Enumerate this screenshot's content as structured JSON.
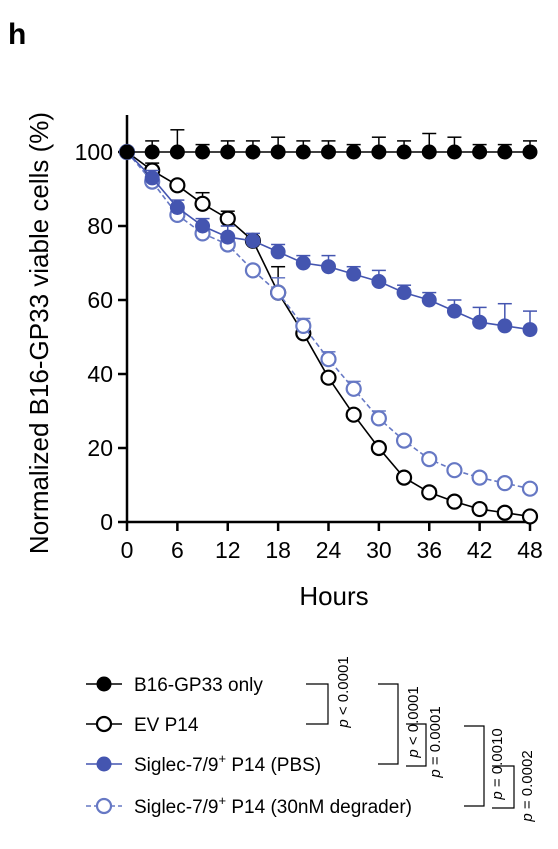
{
  "panel_label": "h",
  "chart_data": {
    "type": "line",
    "xlabel": "Hours",
    "ylabel": "Normalized B16-GP33 viable cells (%)",
    "xlim": [
      0,
      48
    ],
    "ylim": [
      0,
      110
    ],
    "x_ticks": [
      0,
      6,
      12,
      18,
      24,
      30,
      36,
      42,
      48
    ],
    "y_ticks": [
      0,
      20,
      40,
      60,
      80,
      100
    ],
    "x": [
      0,
      3,
      6,
      9,
      12,
      15,
      18,
      21,
      24,
      27,
      30,
      33,
      36,
      39,
      42,
      45,
      48
    ],
    "grid": false,
    "legend_position": "bottom",
    "series": [
      {
        "name": "B16-GP33 only",
        "color": "#000000",
        "marker": "filled-circle",
        "line": "solid",
        "values": [
          100,
          100,
          100,
          100,
          100,
          100,
          100,
          100,
          100,
          100,
          100,
          100,
          100,
          100,
          100,
          100,
          100
        ],
        "error": [
          0,
          3,
          6,
          2,
          3,
          3,
          4,
          3,
          3,
          2,
          4,
          3,
          5,
          4,
          2,
          2,
          3
        ]
      },
      {
        "name": "EV P14",
        "color": "#000000",
        "marker": "open-circle",
        "line": "solid",
        "values": [
          100,
          95,
          91,
          86,
          82,
          76,
          62,
          51,
          39,
          29,
          20,
          12,
          8,
          5.5,
          3.5,
          2.5,
          1.5
        ],
        "error": [
          0,
          2,
          1,
          3,
          2,
          1,
          7,
          3,
          1,
          1,
          1,
          1,
          1,
          1,
          1,
          1,
          1
        ]
      },
      {
        "name": "Siglec-7/9+ P14 (PBS)",
        "color": "#4455b0",
        "marker": "filled-circle",
        "line": "solid",
        "values": [
          100,
          93,
          85,
          80,
          77,
          76,
          73,
          70,
          69,
          67,
          65,
          62,
          60,
          57,
          54,
          53,
          52
        ],
        "error": [
          0,
          2,
          2,
          2,
          3,
          2,
          2,
          2,
          3,
          2,
          3,
          2,
          2,
          3,
          4,
          6,
          5
        ]
      },
      {
        "name": "Siglec-7/9+ P14 (30nM degrader)",
        "color": "#6678c4",
        "marker": "open-circle",
        "line": "dashed",
        "values": [
          100,
          92,
          83,
          78,
          75,
          68,
          62,
          53,
          44,
          36,
          28,
          22,
          17,
          14,
          12,
          10.5,
          9
        ],
        "error": [
          0,
          1,
          1,
          1,
          1,
          1,
          4,
          2,
          2,
          2,
          2,
          1,
          1,
          1,
          1,
          1,
          1
        ]
      }
    ]
  },
  "legend": [
    {
      "text": "B16-GP33 only",
      "sup": "",
      "tail": ""
    },
    {
      "text": "EV P14",
      "sup": "",
      "tail": ""
    },
    {
      "text": "Siglec-7/9",
      "sup": "+",
      "tail": " P14 (PBS)"
    },
    {
      "text": "Siglec-7/9",
      "sup": "+",
      "tail": " P14 (30nM degrader)"
    }
  ],
  "stats": [
    {
      "p": "p",
      "rest": " < 0.0001"
    },
    {
      "p": "p",
      "rest": " < 0.0001"
    },
    {
      "p": "p",
      "rest": " = 0.0001"
    },
    {
      "p": "p",
      "rest": " = 0.0010"
    },
    {
      "p": "p",
      "rest": " = 0.0002"
    }
  ]
}
